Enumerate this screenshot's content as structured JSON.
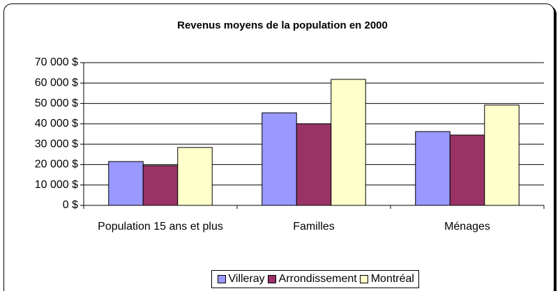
{
  "chart_data": {
    "type": "bar",
    "title": "Revenus moyens de la population en 2000",
    "categories": [
      "Population 15 ans et plus",
      "Familles",
      "Ménages"
    ],
    "series": [
      {
        "name": "Villeray",
        "color": "#9999ff",
        "values": [
          21500,
          45400,
          36200
        ]
      },
      {
        "name": "Arrondissement",
        "color": "#993366",
        "values": [
          19500,
          40000,
          34500
        ]
      },
      {
        "name": "Montréal",
        "color": "#ffffcc",
        "values": [
          28400,
          61800,
          49200
        ]
      }
    ],
    "ylim": [
      0,
      70000
    ],
    "yticks": [
      {
        "value": 0,
        "label": "0 $"
      },
      {
        "value": 10000,
        "label": "10 000 $"
      },
      {
        "value": 20000,
        "label": "20 000 $"
      },
      {
        "value": 30000,
        "label": "30 000 $"
      },
      {
        "value": 40000,
        "label": "40 000 $"
      },
      {
        "value": 50000,
        "label": "50 000 $"
      },
      {
        "value": 60000,
        "label": "60 000 $"
      },
      {
        "value": 70000,
        "label": "70 000 $"
      }
    ],
    "grid": true,
    "legend": "bottom"
  }
}
